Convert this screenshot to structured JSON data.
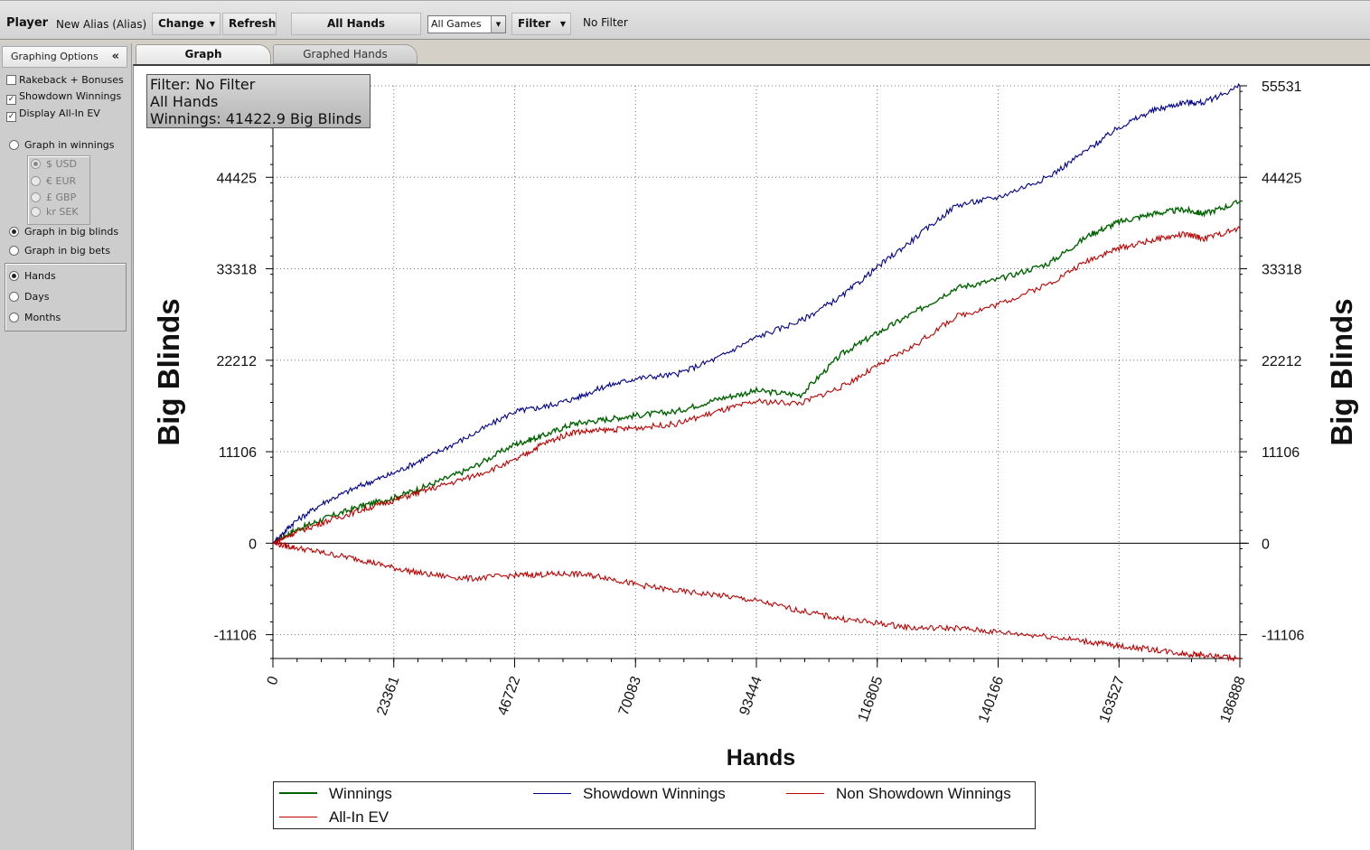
{
  "toolbar": {
    "player_label": "Player",
    "alias": "New Alias (Alias)",
    "change_label": "Change",
    "refresh_label": "Refresh",
    "all_hands_label": "All Hands",
    "games_select": "All Games",
    "filter_label": "Filter",
    "filter_status": "No Filter"
  },
  "sidebar": {
    "title": "Graphing Options",
    "collapse_icon": "«",
    "checkboxes": [
      {
        "label": "Rakeback + Bonuses",
        "checked": false
      },
      {
        "label": "Showdown Winnings",
        "checked": true
      },
      {
        "label": "Display All-In EV",
        "checked": true
      }
    ],
    "graph_in_winnings": "Graph in winnings",
    "currencies": [
      "$ USD",
      "€ EUR",
      "£ GBP",
      "kr SEK"
    ],
    "graph_in_big_blinds": "Graph in big blinds",
    "graph_in_big_bets": "Graph in big bets",
    "x_axis_options": [
      "Hands",
      "Days",
      "Months"
    ],
    "selected_x_axis": "Hands"
  },
  "tabs": {
    "graph": "Graph",
    "graphed_hands": "Graphed Hands"
  },
  "info_box": {
    "filter": "Filter: No Filter",
    "hands": "All Hands",
    "winnings": "Winnings: 41422.9 Big Blinds"
  },
  "chart_data": {
    "type": "line",
    "xlabel": "Hands",
    "ylabel": "Big Blinds",
    "xlim": [
      0,
      186888
    ],
    "ylim": [
      -14000,
      55531
    ],
    "x_ticks": [
      0,
      23361,
      46722,
      70083,
      93444,
      116805,
      140166,
      163527,
      186888
    ],
    "y_ticks": [
      -11106,
      0,
      11106,
      22212,
      33318,
      44425,
      55531
    ],
    "grid": true,
    "legend_position": "bottom",
    "x": [
      0,
      4000,
      10000,
      17000,
      23361,
      30000,
      38000,
      46722,
      52000,
      58000,
      64000,
      70083,
      78000,
      86000,
      93444,
      102000,
      110000,
      116805,
      124000,
      132000,
      140166,
      150000,
      158000,
      163527,
      170000,
      176000,
      180000,
      186888
    ],
    "series": [
      {
        "name": "Winnings",
        "color": "#006400",
        "values": [
          0,
          1500,
          3000,
          4500,
          5500,
          7000,
          9000,
          12000,
          13000,
          14500,
          15000,
          15500,
          16000,
          17500,
          18500,
          18000,
          23000,
          25500,
          28000,
          31000,
          32000,
          34000,
          37500,
          39000,
          40000,
          40500,
          40000,
          41422
        ]
      },
      {
        "name": "Showdown Winnings",
        "color": "#00008b",
        "values": [
          0,
          2500,
          5000,
          7000,
          8500,
          10500,
          13000,
          16000,
          16500,
          17500,
          19000,
          20000,
          20500,
          22500,
          25000,
          27000,
          30000,
          33500,
          37000,
          41000,
          42000,
          44500,
          48000,
          50500,
          52500,
          53500,
          53500,
          55500
        ]
      },
      {
        "name": "Non Showdown Winnings",
        "color": "#c00000",
        "values": [
          0,
          -500,
          -1200,
          -2000,
          -3000,
          -3800,
          -4300,
          -3900,
          -3800,
          -3700,
          -4100,
          -5000,
          -5800,
          -6300,
          -7000,
          -8200,
          -9200,
          -9700,
          -10300,
          -10300,
          -10800,
          -11300,
          -12000,
          -12500,
          -12900,
          -13400,
          -13600,
          -14000
        ]
      },
      {
        "name": "All-In EV",
        "color": "#c00000",
        "values": [
          0,
          1200,
          2600,
          4000,
          5200,
          6500,
          8000,
          10000,
          12000,
          13500,
          13700,
          14000,
          14500,
          16000,
          17200,
          17000,
          19000,
          21500,
          24000,
          27500,
          29000,
          31500,
          34500,
          35800,
          36800,
          37500,
          37000,
          38200
        ]
      }
    ]
  }
}
